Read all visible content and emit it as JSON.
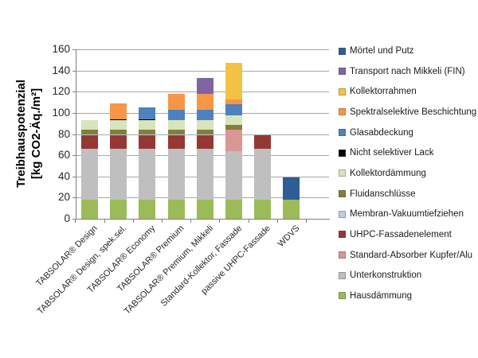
{
  "chart_data": {
    "type": "bar",
    "stacked": true,
    "ylabel_line1": "Treibhauspotenzial",
    "ylabel_line2": "[kg CO2-Äq./m²]",
    "ylim": [
      0,
      160
    ],
    "ytick_interval": 20,
    "yticks": [
      "0",
      "20",
      "40",
      "60",
      "80",
      "100",
      "120",
      "140",
      "160"
    ],
    "grid": "horizontal",
    "legend_position": "right",
    "categories": [
      "TABSOLAR® Design",
      "TABSOLAR® Design, spek.sel.",
      "TABSOLAR® Economy",
      "TABSOLAR® Premium",
      "TABSOLAR® Premium, Mikkeli",
      "Standard-Kollektor, Fassade",
      "passive UHPC-Fassade",
      "WDVS"
    ],
    "series": [
      {
        "name": "Hausdämmung",
        "color": "#9BBB59",
        "values": [
          18,
          18,
          18,
          18,
          18,
          18,
          18,
          18
        ]
      },
      {
        "name": "Unterkonstruktion",
        "color": "#BFBFBF",
        "values": [
          48,
          48,
          48,
          48,
          48,
          46,
          48,
          0
        ]
      },
      {
        "name": "Standard-Absorber Kupfer/Alu",
        "color": "#D99694",
        "values": [
          0,
          0,
          0,
          0,
          0,
          20,
          0,
          0
        ]
      },
      {
        "name": "UHPC-Fassadenelement",
        "color": "#953735",
        "values": [
          13,
          13,
          13,
          13,
          13,
          0,
          13,
          0
        ]
      },
      {
        "name": "Membran-Vakuumtiefziehen",
        "color": "#B8CCE4",
        "values": [
          0.5,
          0.5,
          0.5,
          0.5,
          0.5,
          0,
          0,
          0
        ]
      },
      {
        "name": "Fluidanschlüsse",
        "color": "#847E3B",
        "values": [
          5,
          5,
          5,
          5,
          5,
          5,
          0,
          0
        ]
      },
      {
        "name": "Kollektordämmung",
        "color": "#D7E4BC",
        "values": [
          8.5,
          8.5,
          8.5,
          8.5,
          8.5,
          9,
          0,
          0
        ]
      },
      {
        "name": "Nicht selektiver Lack",
        "color": "#000000",
        "values": [
          0,
          1,
          1,
          0,
          0,
          0,
          0,
          0
        ]
      },
      {
        "name": "Glasabdeckung",
        "color": "#4F81BD",
        "values": [
          0,
          0,
          11,
          10,
          10,
          10,
          0,
          0
        ]
      },
      {
        "name": "Spektralselektive Beschichtung",
        "color": "#F79646",
        "values": [
          0,
          15,
          0,
          15,
          15,
          5,
          0,
          0
        ]
      },
      {
        "name": "Kollektorrahmen",
        "color": "#F2C342",
        "values": [
          0,
          0,
          0,
          0,
          0,
          34,
          0,
          0
        ]
      },
      {
        "name": "Transport nach Mikkeli (FIN)",
        "color": "#8064A2",
        "values": [
          0,
          0,
          0,
          0,
          15,
          0,
          0,
          0
        ]
      },
      {
        "name": "Mörtel und Putz",
        "color": "#2E5C94",
        "values": [
          0,
          0,
          0,
          0,
          0,
          0,
          0,
          21
        ]
      }
    ],
    "bar_totals": [
      93,
      109,
      105,
      118,
      133,
      147,
      79,
      39
    ],
    "legend_top_to_bottom": [
      "Mörtel und Putz",
      "Transport nach Mikkeli (FIN)",
      "Kollektorrahmen",
      "Spektralselektive Beschichtung",
      "Glasabdeckung",
      "Nicht selektiver Lack",
      "Kollektordämmung",
      "Fluidanschlüsse",
      "Membran-Vakuumtiefziehen",
      "UHPC-Fassadenelement",
      "Standard-Absorber Kupfer/Alu",
      "Unterkonstruktion",
      "Hausdämmung"
    ],
    "colors": {
      "gridline": "#A6A6A6",
      "axis": "#808080",
      "text": "#262626"
    }
  }
}
